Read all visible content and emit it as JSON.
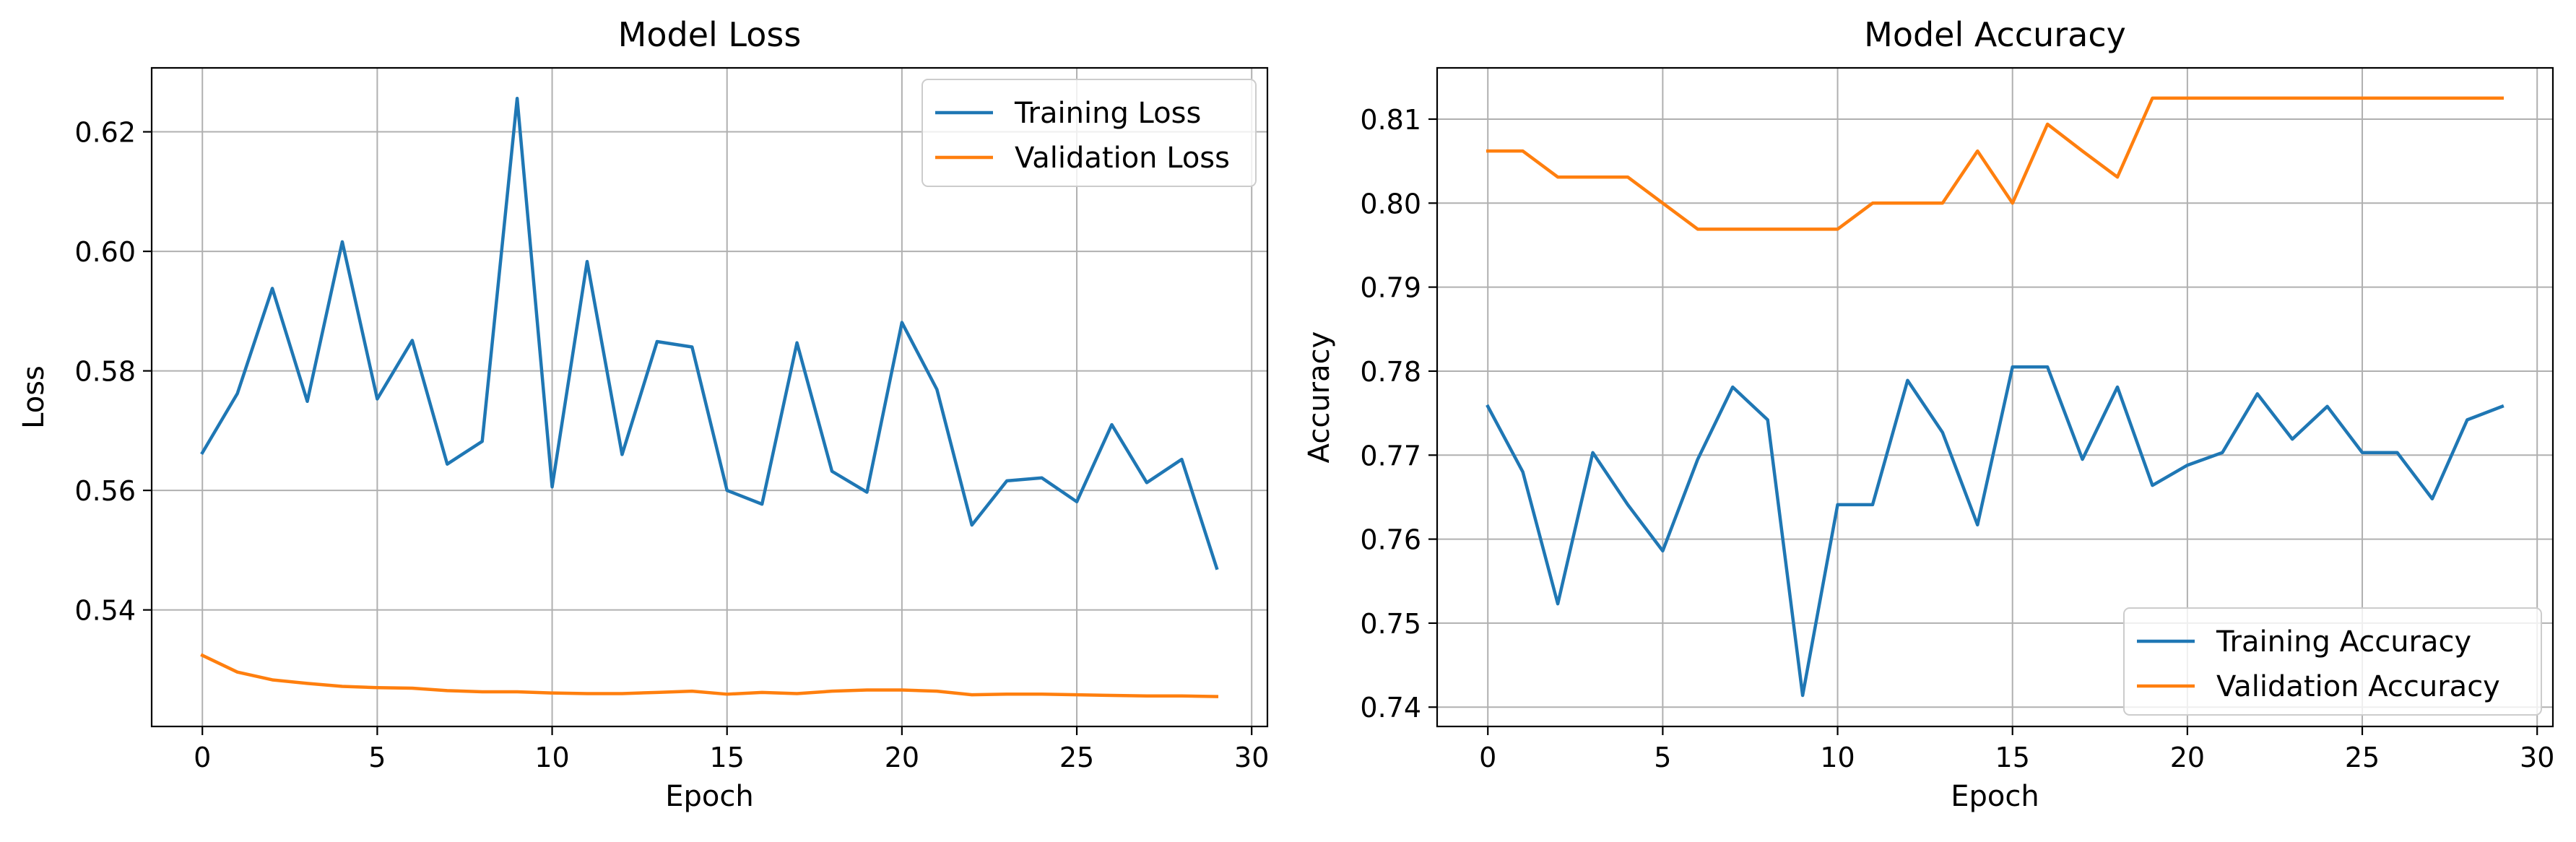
{
  "chart_data": [
    {
      "type": "line",
      "title": "Model Loss",
      "xlabel": "Epoch",
      "ylabel": "Loss",
      "xlim": [
        -1.45,
        30.45
      ],
      "ylim": [
        0.5205,
        0.6307
      ],
      "xticks": [
        0,
        5,
        10,
        15,
        20,
        25,
        30
      ],
      "yticks": [
        0.54,
        0.56,
        0.58,
        0.6,
        0.62
      ],
      "ytick_labels": [
        "0.54",
        "0.56",
        "0.58",
        "0.60",
        "0.62"
      ],
      "grid": true,
      "legend_position": "top-right",
      "x": [
        0,
        1,
        2,
        3,
        4,
        5,
        6,
        7,
        8,
        9,
        10,
        11,
        12,
        13,
        14,
        15,
        16,
        17,
        18,
        19,
        20,
        21,
        22,
        23,
        24,
        25,
        26,
        27,
        28,
        29
      ],
      "series": [
        {
          "name": "Training Loss",
          "color": "#1f77b4",
          "values": [
            0.5663,
            0.5762,
            0.5938,
            0.5749,
            0.6016,
            0.5753,
            0.5851,
            0.5644,
            0.5682,
            0.6256,
            0.5606,
            0.5983,
            0.566,
            0.5849,
            0.584,
            0.56,
            0.5577,
            0.5847,
            0.5632,
            0.5597,
            0.5881,
            0.5769,
            0.5542,
            0.5616,
            0.5621,
            0.5581,
            0.571,
            0.5613,
            0.5652,
            0.547
          ]
        },
        {
          "name": "Validation Loss",
          "color": "#ff7f0e",
          "values": [
            0.5324,
            0.5296,
            0.5283,
            0.5277,
            0.5272,
            0.527,
            0.5269,
            0.5265,
            0.5263,
            0.5263,
            0.5261,
            0.526,
            0.526,
            0.5262,
            0.5264,
            0.5259,
            0.5262,
            0.526,
            0.5264,
            0.5266,
            0.5266,
            0.5264,
            0.5258,
            0.5259,
            0.5259,
            0.5258,
            0.5257,
            0.5256,
            0.5256,
            0.5255
          ]
        }
      ]
    },
    {
      "type": "line",
      "title": "Model Accuracy",
      "xlabel": "Epoch",
      "ylabel": "Accuracy",
      "xlim": [
        -1.45,
        30.45
      ],
      "ylim": [
        0.7377,
        0.8161
      ],
      "xticks": [
        0,
        5,
        10,
        15,
        20,
        25,
        30
      ],
      "yticks": [
        0.74,
        0.75,
        0.76,
        0.77,
        0.78,
        0.79,
        0.8,
        0.81
      ],
      "ytick_labels": [
        "0.74",
        "0.75",
        "0.76",
        "0.77",
        "0.78",
        "0.79",
        "0.80",
        "0.81"
      ],
      "grid": true,
      "legend_position": "bottom-right",
      "x": [
        0,
        1,
        2,
        3,
        4,
        5,
        6,
        7,
        8,
        9,
        10,
        11,
        12,
        13,
        14,
        15,
        16,
        17,
        18,
        19,
        20,
        21,
        22,
        23,
        24,
        25,
        26,
        27,
        28,
        29
      ],
      "series": [
        {
          "name": "Training Accuracy",
          "color": "#1f77b4",
          "values": [
            0.7758,
            0.768,
            0.7523,
            0.7703,
            0.7641,
            0.7586,
            0.7695,
            0.7781,
            0.7742,
            0.7414,
            0.7641,
            0.7641,
            0.7789,
            0.7727,
            0.7617,
            0.7805,
            0.7805,
            0.7695,
            0.7781,
            0.7664,
            0.7688,
            0.7703,
            0.7773,
            0.7719,
            0.7758,
            0.7703,
            0.7703,
            0.7648,
            0.7742,
            0.7758
          ]
        },
        {
          "name": "Validation Accuracy",
          "color": "#ff7f0e",
          "values": [
            0.8062,
            0.8062,
            0.8031,
            0.8031,
            0.8031,
            0.8,
            0.7969,
            0.7969,
            0.7969,
            0.7969,
            0.7969,
            0.8,
            0.8,
            0.8,
            0.8062,
            0.8,
            0.8094,
            0.8062,
            0.8031,
            0.8125,
            0.8125,
            0.8125,
            0.8125,
            0.8125,
            0.8125,
            0.8125,
            0.8125,
            0.8125,
            0.8125,
            0.8125
          ]
        }
      ]
    }
  ]
}
